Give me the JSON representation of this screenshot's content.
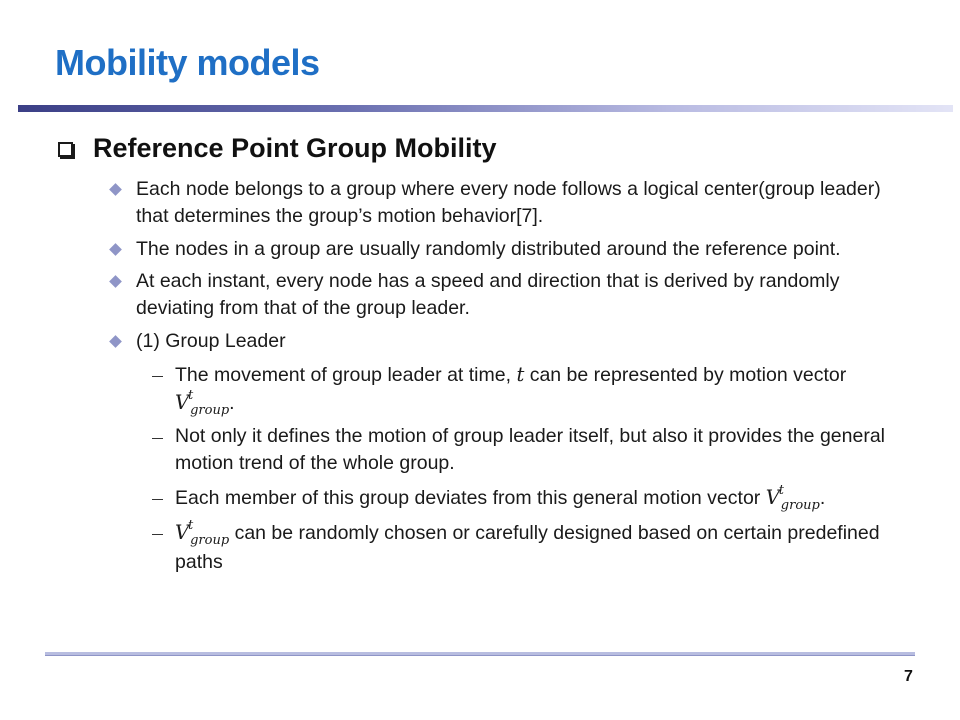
{
  "slide": {
    "title": "Mobility models",
    "heading": "Reference Point Group Mobility",
    "bullets": [
      "Each node belongs to a group where every node follows a logical center(group leader) that determines the group’s motion behavior[7].",
      "The nodes in a group are usually randomly distributed around the reference point.",
      "At each instant, every node has a speed and direction that is derived by randomly deviating from that of the group leader.",
      "(1) Group Leader"
    ],
    "sub_bullets": {
      "s1_text_a": "The movement of group leader at time,",
      "s1_var_t": "t",
      "s1_text_b": "can be represented by motion vector",
      "s2": "Not only it defines the motion of group leader itself, but also it provides the general motion trend of the whole group.",
      "s3_text": "Each member of this group deviates from this general motion vector",
      "s4_text": "can be randomly chosen or carefully designed based on certain predefined paths"
    },
    "vector": {
      "base": "V",
      "sup": "t",
      "sub": "group"
    },
    "period": ".",
    "page_number": "7",
    "colors": {
      "title": "#1f6fc5",
      "bullet_diamond": "#8f95c7",
      "rule_dark": "#3b3f86",
      "rule_light": "#e3e4f6"
    }
  }
}
